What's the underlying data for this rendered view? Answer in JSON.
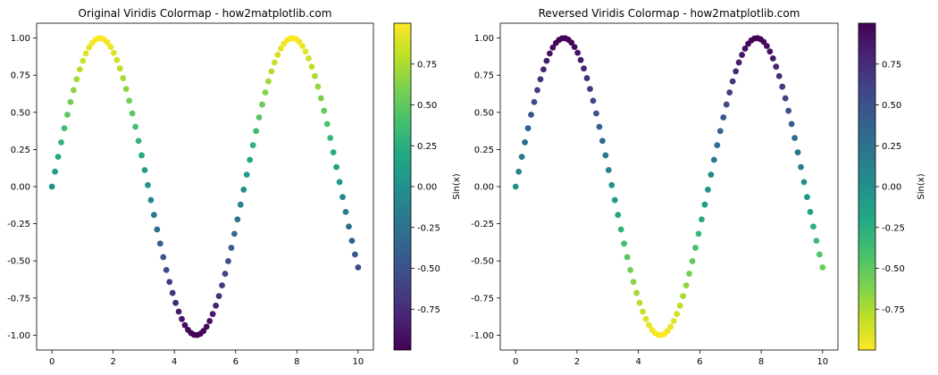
{
  "chart_data": [
    {
      "type": "scatter",
      "title": "Original Viridis Colormap - how2matplotlib.com",
      "colormap": "viridis",
      "reversed": false,
      "x_range": [
        0,
        10
      ],
      "n_points": 100,
      "y_function": "sin(x)",
      "xlim": [
        -0.5,
        10.5
      ],
      "ylim": [
        -1.1,
        1.1
      ],
      "xticks": [
        0,
        2,
        4,
        6,
        8,
        10
      ],
      "xtick_labels": [
        "0",
        "2",
        "4",
        "6",
        "8",
        "10"
      ],
      "yticks": [
        1.0,
        0.75,
        0.5,
        0.25,
        0.0,
        -0.25,
        -0.5,
        -0.75,
        -1.0
      ],
      "ytick_labels": [
        "1.00",
        "0.75",
        "0.50",
        "0.25",
        "0.00",
        "-0.25",
        "-0.50",
        "-0.75",
        "-1.00"
      ],
      "colorbar": {
        "label": "Sin(x)",
        "range": [
          -1.0,
          1.0
        ],
        "ticks": [
          0.75,
          0.5,
          0.25,
          0.0,
          -0.25,
          -0.5,
          -0.75
        ],
        "tick_labels": [
          "0.75",
          "0.50",
          "0.25",
          "0.00",
          "-0.25",
          "-0.50",
          "-0.75"
        ]
      },
      "grid": false,
      "legend": "none"
    },
    {
      "type": "scatter",
      "title": "Reversed Viridis Colormap - how2matplotlib.com",
      "colormap": "viridis_r",
      "reversed": true,
      "x_range": [
        0,
        10
      ],
      "n_points": 100,
      "y_function": "sin(x)",
      "xlim": [
        -0.5,
        10.5
      ],
      "ylim": [
        -1.1,
        1.1
      ],
      "xticks": [
        0,
        2,
        4,
        6,
        8,
        10
      ],
      "xtick_labels": [
        "0",
        "2",
        "4",
        "6",
        "8",
        "10"
      ],
      "yticks": [
        1.0,
        0.75,
        0.5,
        0.25,
        0.0,
        -0.25,
        -0.5,
        -0.75,
        -1.0
      ],
      "ytick_labels": [
        "1.00",
        "0.75",
        "0.50",
        "0.25",
        "0.00",
        "-0.25",
        "-0.50",
        "-0.75",
        "-1.00"
      ],
      "colorbar": {
        "label": "Sin(x)",
        "range": [
          -1.0,
          1.0
        ],
        "ticks": [
          0.75,
          0.5,
          0.25,
          0.0,
          -0.25,
          -0.5,
          -0.75
        ],
        "tick_labels": [
          "0.75",
          "0.50",
          "0.25",
          "0.00",
          "-0.25",
          "-0.50",
          "-0.75"
        ]
      },
      "grid": false,
      "legend": "none"
    }
  ]
}
